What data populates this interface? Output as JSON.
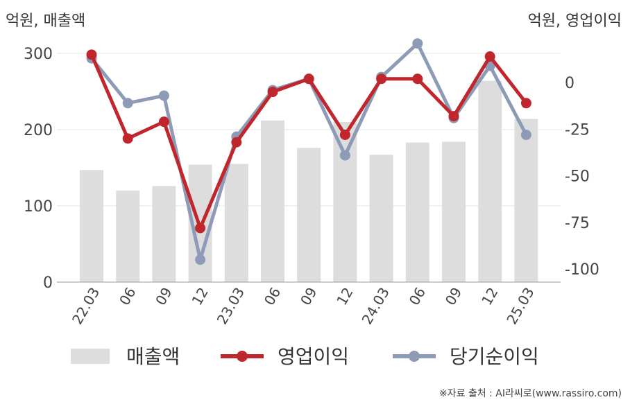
{
  "chart_data": {
    "type": "bar+line",
    "categories": [
      "22.03",
      "06",
      "09",
      "12",
      "23.03",
      "06",
      "09",
      "12",
      "24.03",
      "06",
      "09",
      "12",
      "25.03"
    ],
    "left_axis": {
      "unit_label": "억원, 매출액",
      "ticks": [
        "0",
        "100",
        "200",
        "300"
      ],
      "tick_values": [
        0,
        100,
        200,
        300
      ],
      "ylim": [
        0,
        300
      ]
    },
    "right_axis": {
      "unit_label": "억원, 영업이익",
      "ticks": [
        "0",
        "-25",
        "-50",
        "-75",
        "-100"
      ],
      "tick_values": [
        0,
        -25,
        -50,
        -75,
        -100
      ],
      "ylim": [
        -107,
        22
      ]
    },
    "series": [
      {
        "name": "매출액",
        "type": "bar",
        "axis": "left",
        "color": "#dddddd",
        "values": [
          147,
          120,
          126,
          154,
          155,
          212,
          176,
          210,
          167,
          183,
          184,
          264,
          214
        ]
      },
      {
        "name": "영업이익",
        "type": "line",
        "axis": "right",
        "color": "#c0272d",
        "values": [
          15,
          -30,
          -21,
          -78,
          -32,
          -5,
          2,
          -28,
          2,
          2,
          -18,
          14,
          -11
        ]
      },
      {
        "name": "당기순이익",
        "type": "line",
        "axis": "right",
        "color": "#8e9bb6",
        "values": [
          13,
          -11,
          -7,
          -95,
          -29,
          -4,
          2,
          -39,
          3,
          21,
          -19,
          9,
          -28
        ]
      }
    ],
    "legend": {
      "placement": "bottom"
    },
    "grid": true
  },
  "source_note": "※자료 출처 : AI라씨로(www.rassiro.com)"
}
